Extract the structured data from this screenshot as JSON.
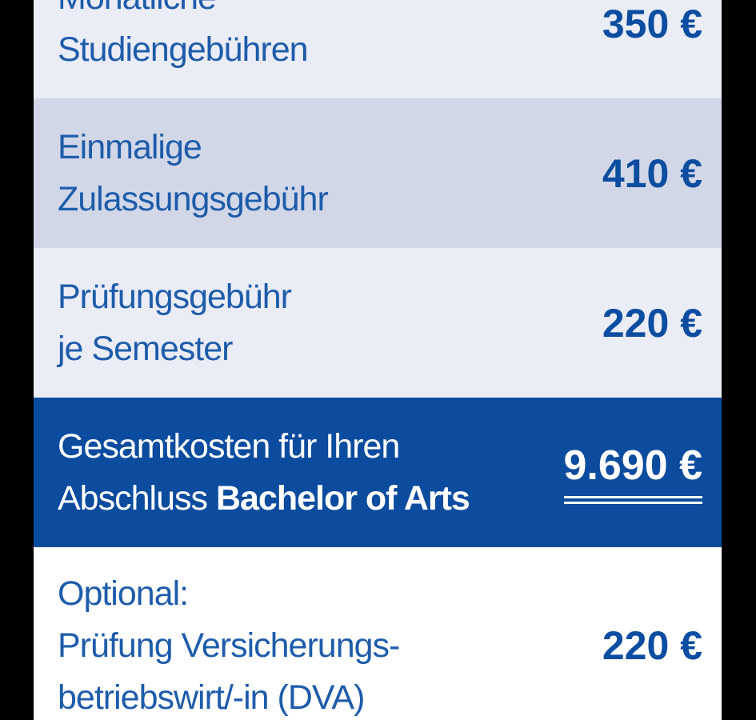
{
  "colors": {
    "frame": "#000000",
    "row_light": "#eaecf6",
    "row_shaded": "#d2d7e8",
    "row_highlight": "#0c4c9e",
    "row_white": "#ffffff",
    "label_text": "#1e5caa",
    "value_text": "#0b4da0",
    "highlight_text": "#ffffff"
  },
  "fees_table": {
    "currency_symbol": "€",
    "rows": [
      {
        "style": "light",
        "clip_top": true,
        "lines": [
          [
            "Monatliche"
          ],
          [
            "Studiengebühren"
          ]
        ],
        "value": "350 €"
      },
      {
        "style": "shaded",
        "lines": [
          [
            "Einmalige"
          ],
          [
            "Zulassungsgebühr"
          ]
        ],
        "value": "410 €"
      },
      {
        "style": "light",
        "lines": [
          [
            "Prüfungsgebühr"
          ],
          [
            "je Semester"
          ]
        ],
        "value": "220 €"
      },
      {
        "style": "highlight",
        "lines": [
          [
            "Gesamtkosten für Ihren"
          ],
          [
            "Abschluss ",
            {
              "text": "Bachelor of Arts",
              "bold": true
            }
          ]
        ],
        "value": "9.690 €",
        "value_underline": true
      },
      {
        "style": "white",
        "tall": true,
        "lines": [
          [
            "Optional:"
          ],
          [
            "Prüfung Versicherungs-"
          ],
          [
            "betriebswirt/-in (DVA)"
          ]
        ],
        "value": "220 €"
      }
    ]
  }
}
